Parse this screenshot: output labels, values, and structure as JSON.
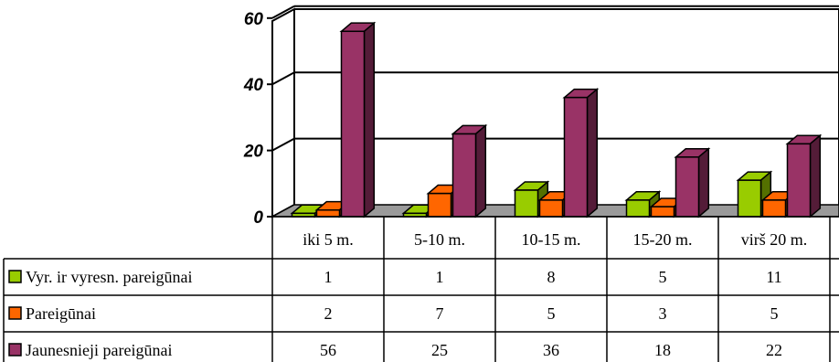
{
  "chart_data": {
    "type": "bar",
    "title": "",
    "xlabel": "",
    "ylabel": "",
    "ylim": [
      0,
      60
    ],
    "yticks": [
      0,
      20,
      40,
      60
    ],
    "grid": true,
    "legend": "table-left",
    "categories": [
      "iki 5 m.",
      "5-10 m.",
      "10-15 m.",
      "15-20 m.",
      "virš 20 m."
    ],
    "series": [
      {
        "name": "Vyr. ir vyresn. pareigūnai",
        "values": [
          1,
          1,
          8,
          5,
          11
        ],
        "color": "#99cc00"
      },
      {
        "name": "Pareigūnai",
        "values": [
          2,
          7,
          5,
          3,
          5
        ],
        "color": "#ff6600"
      },
      {
        "name": "Jaunesnieji pareigūnai",
        "values": [
          56,
          25,
          36,
          18,
          22
        ],
        "color": "#993366"
      }
    ]
  }
}
